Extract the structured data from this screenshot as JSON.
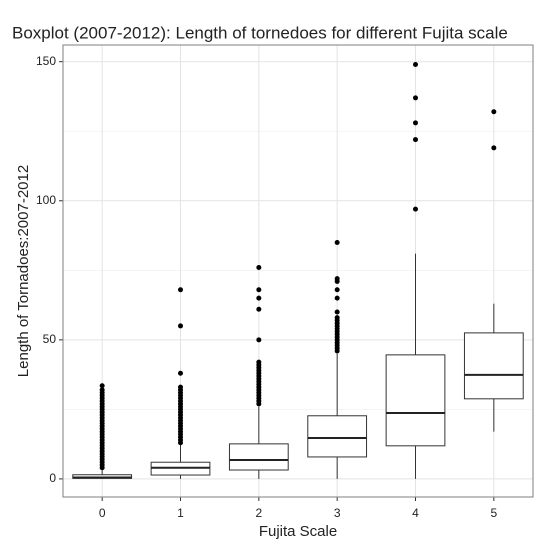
{
  "chart_data": {
    "type": "boxplot",
    "title": "Boxplot (2007-2012): Length of tornedoes for different Fujita scale",
    "x_label": "Fujita Scale",
    "y_label": "Length of Tornadoes:2007-2012",
    "categories": [
      "0",
      "1",
      "2",
      "3",
      "4",
      "5"
    ],
    "boxes": [
      {
        "min": 0,
        "q1": 0.2,
        "median": 0.5,
        "q3": 1.5,
        "max": 3.5,
        "outliers": [
          4,
          5,
          6,
          7,
          8,
          9,
          10,
          11,
          12,
          13,
          14,
          15,
          16,
          17,
          18,
          19,
          20,
          21,
          22,
          23,
          24,
          25,
          26,
          27,
          28,
          29,
          30,
          31,
          32,
          33.5
        ]
      },
      {
        "min": 0,
        "q1": 1.4,
        "median": 4,
        "q3": 6,
        "max": 12.5,
        "outliers": [
          13,
          14,
          15,
          16,
          17,
          18,
          19,
          20,
          21,
          22,
          23,
          24,
          25,
          26,
          27,
          28,
          29,
          30,
          31,
          32,
          33,
          38,
          55,
          68
        ]
      },
      {
        "min": 0,
        "q1": 3.2,
        "median": 6.8,
        "q3": 12.6,
        "max": 26,
        "outliers": [
          27,
          28,
          29,
          30,
          31,
          32,
          33,
          34,
          35,
          36,
          37,
          38,
          39,
          40,
          41,
          42,
          50,
          61,
          65,
          68,
          76
        ]
      },
      {
        "min": 0,
        "q1": 7.9,
        "median": 14.7,
        "q3": 22.7,
        "max": 45,
        "outliers": [
          46,
          47,
          48,
          49,
          50,
          51,
          52,
          53,
          54,
          55,
          56,
          57,
          58,
          60,
          65,
          68,
          71,
          72,
          85
        ]
      },
      {
        "min": 0,
        "q1": 11.9,
        "median": 23.7,
        "q3": 44.6,
        "max": 81,
        "outliers": [
          97,
          122,
          128,
          137,
          149
        ]
      },
      {
        "min": 17,
        "q1": 28.8,
        "median": 37.4,
        "q3": 52.5,
        "max": 63,
        "outliers": [
          119,
          132
        ]
      }
    ],
    "ylim": [
      -6.5,
      156
    ],
    "yticks": [
      0,
      50,
      100,
      150
    ],
    "yminor": [
      25,
      75,
      125
    ],
    "grid": true
  }
}
